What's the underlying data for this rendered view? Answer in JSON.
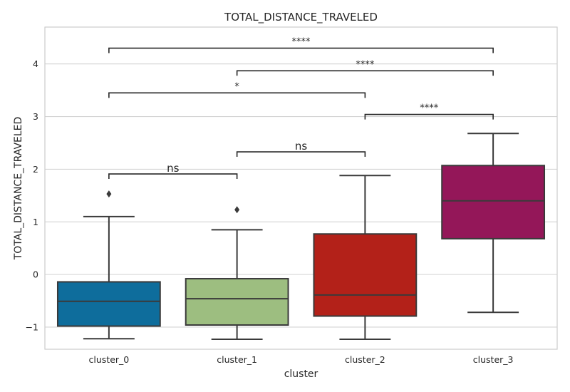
{
  "chart_data": {
    "type": "box",
    "title": "TOTAL_DISTANCE_TRAVELED",
    "xlabel": "cluster",
    "ylabel": "TOTAL_DISTANCE_TRAVELED",
    "ylim": [
      -1.42,
      4.7
    ],
    "yticks": [
      -1,
      0,
      1,
      2,
      3,
      4
    ],
    "grid": true,
    "categories": [
      "cluster_0",
      "cluster_1",
      "cluster_2",
      "cluster_3"
    ],
    "boxes": [
      {
        "category": "cluster_0",
        "color": "#0e6d9c",
        "whisker_low": -1.22,
        "q1": -0.98,
        "median": -0.51,
        "q3": -0.14,
        "whisker_high": 1.1,
        "outliers": [
          1.53
        ]
      },
      {
        "category": "cluster_1",
        "color": "#9dbe80",
        "whisker_low": -1.23,
        "q1": -0.96,
        "median": -0.46,
        "q3": -0.08,
        "whisker_high": 0.85,
        "outliers": [
          1.23
        ]
      },
      {
        "category": "cluster_2",
        "color": "#b32119",
        "whisker_low": -1.23,
        "q1": -0.79,
        "median": -0.39,
        "q3": 0.77,
        "whisker_high": 1.88,
        "outliers": []
      },
      {
        "category": "cluster_3",
        "color": "#941759",
        "whisker_low": -0.72,
        "q1": 0.68,
        "median": 1.4,
        "q3": 2.07,
        "whisker_high": 2.68,
        "outliers": []
      }
    ],
    "annotations": [
      {
        "from": "cluster_0",
        "to": "cluster_1",
        "y": 1.91,
        "label": "ns"
      },
      {
        "from": "cluster_1",
        "to": "cluster_2",
        "y": 2.33,
        "label": "ns"
      },
      {
        "from": "cluster_2",
        "to": "cluster_3",
        "y": 3.04,
        "label": "****"
      },
      {
        "from": "cluster_0",
        "to": "cluster_2",
        "y": 3.45,
        "label": "*"
      },
      {
        "from": "cluster_1",
        "to": "cluster_3",
        "y": 3.87,
        "label": "****"
      },
      {
        "from": "cluster_0",
        "to": "cluster_3",
        "y": 4.3,
        "label": "****"
      }
    ]
  }
}
